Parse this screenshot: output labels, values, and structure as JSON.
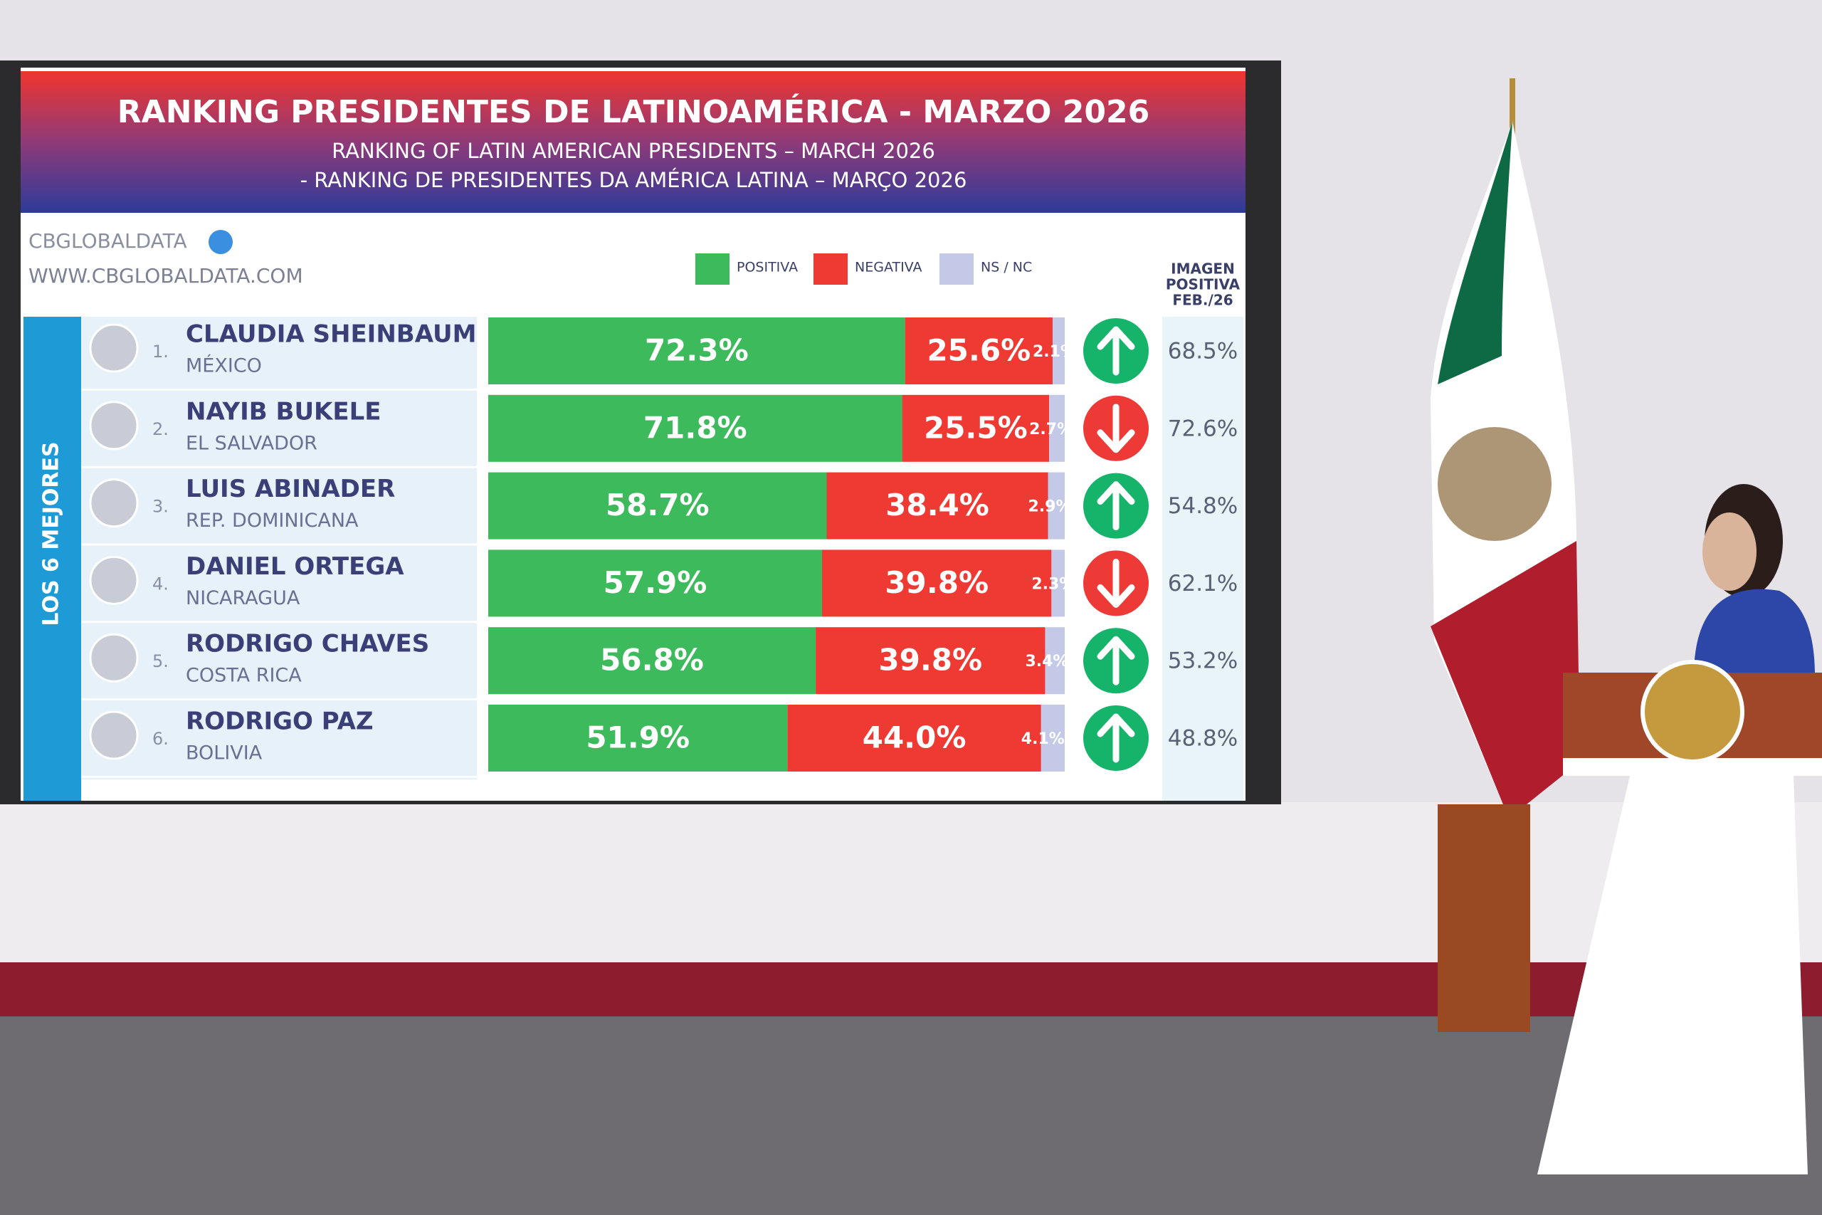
{
  "chart_data": {
    "type": "bar",
    "title": "RANKING PRESIDENTES DE LATINOAMÉRICA - MARZO 2026",
    "subtitle_lines": [
      "RANKING OF LATIN AMERICAN PRESIDENTS – MARCH 2026",
      "- RANKING DE PRESIDENTES DA AMÉRICA LATINA – MARÇO 2026"
    ],
    "source": "CBGLOBALDATA",
    "source_url": "WWW.CBGLOBALDATA.COM",
    "group_label": "LOS 6 MEJORES",
    "ranks": [
      "1.",
      "2.",
      "3.",
      "4.",
      "5.",
      "6."
    ],
    "categories": [
      "CLAUDIA SHEINBAUM",
      "NAYIB BUKELE",
      "LUIS ABINADER",
      "DANIEL ORTEGA",
      "RODRIGO CHAVES",
      "RODRIGO PAZ"
    ],
    "countries": [
      "MÉXICO",
      "EL SALVADOR",
      "REP. DOMINICANA",
      "NICARAGUA",
      "COSTA RICA",
      "BOLIVIA"
    ],
    "stacked": true,
    "orientation": "horizontal",
    "series": [
      {
        "name": "POSITIVA",
        "color": "#3dba5c",
        "values": [
          72.3,
          71.8,
          58.7,
          57.9,
          56.8,
          51.9
        ],
        "value_labels": [
          "72.3%",
          "71.8%",
          "58.7%",
          "57.9%",
          "56.8%",
          "51.9%"
        ]
      },
      {
        "name": "NEGATIVA",
        "color": "#ef3a34",
        "values": [
          25.6,
          25.5,
          38.4,
          39.8,
          39.8,
          44.0
        ],
        "value_labels": [
          "25.6%",
          "25.5%",
          "38.4%",
          "39.8%",
          "39.8%",
          "44.0%"
        ]
      },
      {
        "name": "NS / NC",
        "color": "#c3c9e6",
        "values": [
          2.1,
          2.7,
          2.9,
          2.3,
          3.4,
          4.1
        ],
        "value_labels": [
          "2.1%",
          "2.7%",
          "2.9%",
          "2.3%",
          "3.4%",
          "4.1%"
        ]
      }
    ],
    "trends": [
      "up",
      "down",
      "up",
      "down",
      "up",
      "up"
    ],
    "trend_colors": {
      "up": "#16b46a",
      "down": "#ee3a36"
    },
    "previous_header_lines": [
      "IMAGEN",
      "POSITIVA",
      "FEB./26"
    ],
    "previous_values": [
      68.5,
      72.6,
      54.8,
      62.1,
      53.2,
      48.8
    ],
    "previous_value_labels": [
      "68.5%",
      "72.6%",
      "54.8%",
      "62.1%",
      "53.2%",
      "48.8%"
    ]
  }
}
